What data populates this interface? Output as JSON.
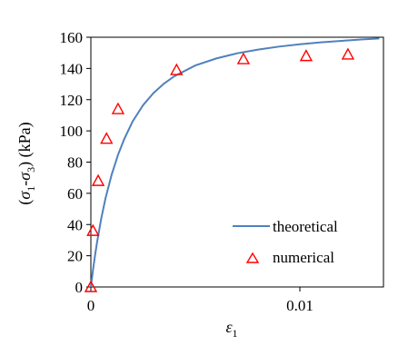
{
  "chart_data": {
    "type": "line",
    "xlabel": "ε1",
    "xlabel_main": "ε",
    "xlabel_sub": "1",
    "ylabel": "(σ1-σ3) (kPa)",
    "ylabel_parts": {
      "open": "(",
      "s1": "σ",
      "sub1": "1",
      "dash": "-",
      "s3": "σ",
      "sub3": "3",
      "close": ") (kPa)"
    },
    "xlim": [
      0,
      0.014
    ],
    "ylim": [
      0,
      160
    ],
    "xticks": [
      0,
      0.01
    ],
    "xtick_labels": [
      "0",
      "0.01"
    ],
    "yticks": [
      0,
      20,
      40,
      60,
      80,
      100,
      120,
      140,
      160
    ],
    "ytick_labels": [
      "0",
      "20",
      "40",
      "60",
      "80",
      "100",
      "120",
      "140",
      "160"
    ],
    "legend_position": "lower-right",
    "grid": false,
    "series": [
      {
        "name": "theoretical",
        "kind": "line",
        "color": "#4f81bd",
        "x": [
          0,
          0.0001,
          0.0002,
          0.0003,
          0.0005,
          0.0007,
          0.001,
          0.0013,
          0.0016,
          0.002,
          0.0025,
          0.003,
          0.0035,
          0.004,
          0.005,
          0.006,
          0.007,
          0.008,
          0.009,
          0.01,
          0.011,
          0.012,
          0.013,
          0.0138
        ],
        "y": [
          0,
          10.7,
          20.3,
          28.9,
          44.1,
          56.8,
          72.2,
          84.7,
          94.9,
          106.1,
          116.5,
          124.3,
          130.3,
          135.1,
          141.9,
          146.4,
          149.7,
          152.1,
          154.0,
          155.5,
          156.7,
          157.7,
          158.6,
          159.2
        ]
      },
      {
        "name": "numerical",
        "kind": "marker",
        "marker": "triangle",
        "color": "#ff0000",
        "x": [
          0,
          0.0001,
          0.00035,
          0.00075,
          0.0013,
          0.0041,
          0.0073,
          0.0103,
          0.0123
        ],
        "y": [
          0,
          36,
          68,
          95,
          114,
          139,
          146,
          148,
          149
        ]
      }
    ]
  }
}
